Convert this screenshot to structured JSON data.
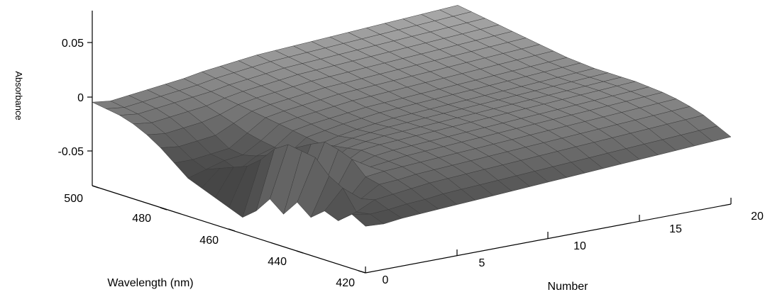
{
  "chart_data": {
    "type": "surface",
    "title": "",
    "zlabel": "Absorbance",
    "xlabel": "Number",
    "ylabel": "Wavelength (nm)",
    "z_ticks": [
      "0.05",
      "0",
      "-0.05"
    ],
    "x_ticks": [
      "0",
      "5",
      "10",
      "15",
      "20"
    ],
    "y_ticks": [
      "500",
      "480",
      "460",
      "440",
      "420"
    ],
    "zlim": [
      -0.075,
      0.08
    ],
    "xlim": [
      0,
      20
    ],
    "ylim": [
      420,
      500
    ],
    "colormap": [
      "#1a1a1a",
      "#5a5a5a",
      "#ffffff"
    ],
    "surface": {
      "x": [
        0,
        1,
        2,
        3,
        4,
        5,
        6,
        7,
        8,
        9,
        10,
        11,
        12,
        13,
        14,
        15,
        16,
        17,
        18,
        19,
        20
      ],
      "y": [
        420,
        424,
        428,
        432,
        436,
        440,
        444,
        448,
        452,
        456,
        460,
        464,
        468,
        472,
        476,
        480,
        484,
        488,
        492,
        496,
        500
      ],
      "z": [
        [
          -0.032,
          -0.033,
          -0.031,
          -0.03,
          -0.029,
          -0.028,
          -0.027,
          -0.026,
          -0.025,
          -0.024,
          -0.023,
          -0.022,
          -0.021,
          -0.02,
          -0.019,
          -0.018,
          -0.017,
          -0.016,
          -0.015,
          -0.014,
          -0.013
        ],
        [
          -0.025,
          -0.028,
          -0.027,
          -0.025,
          -0.024,
          -0.022,
          -0.021,
          -0.02,
          -0.019,
          -0.018,
          -0.017,
          -0.016,
          -0.015,
          -0.014,
          -0.013,
          -0.012,
          -0.011,
          -0.01,
          -0.009,
          -0.008,
          -0.007
        ],
        [
          -0.035,
          -0.03,
          -0.022,
          -0.02,
          -0.018,
          -0.016,
          -0.015,
          -0.014,
          -0.013,
          -0.012,
          -0.011,
          -0.01,
          -0.009,
          -0.008,
          -0.007,
          -0.006,
          -0.005,
          -0.004,
          -0.003,
          -0.002,
          -0.001
        ],
        [
          -0.03,
          -0.012,
          -0.025,
          -0.015,
          -0.014,
          -0.012,
          -0.011,
          -0.01,
          -0.009,
          -0.008,
          -0.007,
          -0.006,
          -0.005,
          -0.004,
          -0.003,
          -0.002,
          -0.001,
          0.0,
          0.001,
          0.002,
          0.003
        ],
        [
          -0.04,
          -0.005,
          -0.03,
          -0.012,
          -0.01,
          -0.009,
          -0.008,
          -0.007,
          -0.006,
          -0.005,
          -0.004,
          -0.003,
          -0.002,
          -0.001,
          0.0,
          0.001,
          0.002,
          0.003,
          0.004,
          0.005,
          0.006
        ],
        [
          -0.03,
          0.008,
          -0.028,
          0.0,
          -0.01,
          -0.008,
          -0.006,
          -0.005,
          -0.004,
          -0.003,
          -0.002,
          -0.001,
          0.0,
          0.001,
          0.002,
          0.003,
          0.004,
          0.005,
          0.006,
          0.007,
          0.008
        ],
        [
          -0.045,
          0.01,
          -0.035,
          0.005,
          -0.012,
          -0.007,
          -0.005,
          -0.004,
          -0.003,
          -0.002,
          -0.001,
          0.0,
          0.001,
          0.002,
          0.003,
          0.004,
          0.005,
          0.006,
          0.007,
          0.008,
          0.009
        ],
        [
          -0.035,
          0.012,
          -0.03,
          0.008,
          -0.015,
          -0.006,
          -0.004,
          -0.003,
          -0.002,
          -0.001,
          0.0,
          0.001,
          0.002,
          0.003,
          0.004,
          0.005,
          0.006,
          0.007,
          0.008,
          0.009,
          0.01
        ],
        [
          -0.05,
          0.004,
          -0.04,
          0.002,
          -0.018,
          -0.008,
          -0.005,
          -0.003,
          -0.002,
          -0.001,
          0.0,
          0.001,
          0.002,
          0.003,
          0.004,
          0.005,
          0.006,
          0.007,
          0.008,
          0.009,
          0.01
        ],
        [
          -0.06,
          -0.01,
          -0.05,
          -0.005,
          -0.02,
          -0.01,
          -0.006,
          -0.004,
          -0.002,
          -0.001,
          0.0,
          0.001,
          0.002,
          0.003,
          0.004,
          0.005,
          0.006,
          0.007,
          0.008,
          0.009,
          0.01
        ],
        [
          -0.055,
          -0.02,
          -0.045,
          -0.015,
          -0.025,
          -0.012,
          -0.008,
          -0.005,
          -0.003,
          -0.001,
          0.0,
          0.001,
          0.002,
          0.003,
          0.004,
          0.005,
          0.006,
          0.007,
          0.008,
          0.009,
          0.01
        ],
        [
          -0.05,
          -0.025,
          -0.04,
          -0.02,
          -0.022,
          -0.01,
          -0.007,
          -0.004,
          -0.002,
          0.0,
          0.001,
          0.002,
          0.003,
          0.004,
          0.005,
          0.006,
          0.007,
          0.008,
          0.009,
          0.01,
          0.011
        ],
        [
          -0.045,
          -0.03,
          -0.035,
          -0.025,
          -0.02,
          -0.008,
          -0.005,
          -0.003,
          -0.001,
          0.001,
          0.002,
          0.003,
          0.004,
          0.005,
          0.006,
          0.007,
          0.008,
          0.009,
          0.01,
          0.011,
          0.012
        ],
        [
          -0.04,
          -0.035,
          -0.03,
          -0.028,
          -0.018,
          -0.006,
          -0.003,
          -0.001,
          0.001,
          0.003,
          0.004,
          0.005,
          0.006,
          0.007,
          0.008,
          0.009,
          0.01,
          0.011,
          0.012,
          0.013,
          0.014
        ],
        [
          -0.03,
          -0.03,
          -0.028,
          -0.026,
          -0.015,
          -0.004,
          -0.001,
          0.001,
          0.003,
          0.005,
          0.006,
          0.007,
          0.008,
          0.009,
          0.01,
          0.011,
          0.012,
          0.013,
          0.014,
          0.015,
          0.016
        ],
        [
          -0.02,
          -0.022,
          -0.02,
          -0.018,
          -0.01,
          -0.002,
          0.001,
          0.003,
          0.005,
          0.007,
          0.008,
          0.009,
          0.01,
          0.011,
          0.012,
          0.013,
          0.014,
          0.015,
          0.016,
          0.017,
          0.018
        ],
        [
          -0.012,
          -0.014,
          -0.012,
          -0.01,
          -0.006,
          0.0,
          0.003,
          0.005,
          0.007,
          0.009,
          0.01,
          0.011,
          0.012,
          0.013,
          0.014,
          0.015,
          0.016,
          0.017,
          0.018,
          0.019,
          0.02
        ],
        [
          -0.006,
          -0.008,
          -0.006,
          -0.004,
          -0.002,
          0.002,
          0.005,
          0.007,
          0.009,
          0.011,
          0.012,
          0.013,
          0.014,
          0.015,
          0.016,
          0.017,
          0.018,
          0.019,
          0.02,
          0.021,
          0.022
        ],
        [
          -0.002,
          -0.004,
          -0.002,
          0.0,
          0.002,
          0.004,
          0.007,
          0.009,
          0.011,
          0.013,
          0.014,
          0.015,
          0.016,
          0.017,
          0.018,
          0.019,
          0.02,
          0.021,
          0.022,
          0.023,
          0.024
        ],
        [
          0.0,
          -0.002,
          0.0,
          0.002,
          0.004,
          0.006,
          0.009,
          0.011,
          0.013,
          0.015,
          0.016,
          0.017,
          0.018,
          0.019,
          0.02,
          0.021,
          0.022,
          0.023,
          0.024,
          0.025,
          0.026
        ],
        [
          0.002,
          0.0,
          0.002,
          0.004,
          0.006,
          0.008,
          0.011,
          0.013,
          0.015,
          0.017,
          0.018,
          0.019,
          0.02,
          0.021,
          0.022,
          0.023,
          0.024,
          0.025,
          0.026,
          0.027,
          0.028
        ]
      ]
    }
  }
}
